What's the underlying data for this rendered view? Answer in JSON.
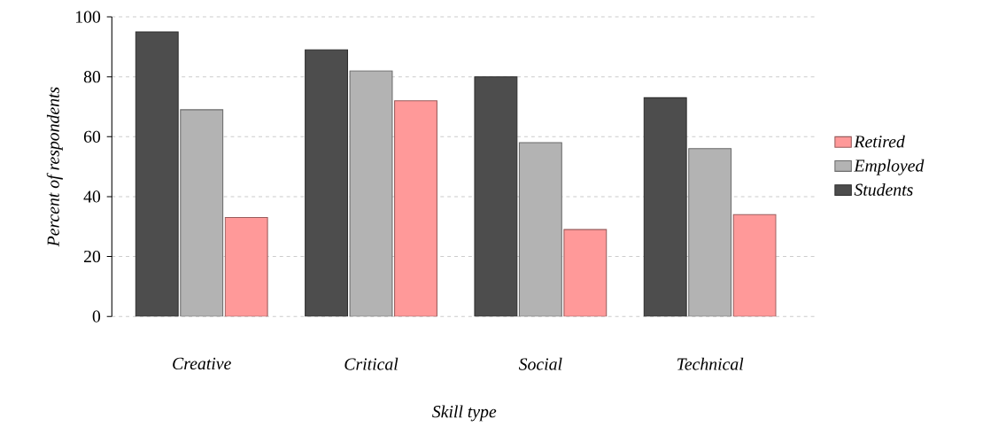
{
  "chart_data": {
    "type": "bar",
    "xlabel": "Skill type",
    "ylabel": "Percent of respondents",
    "categories": [
      "Creative",
      "Critical",
      "Social",
      "Technical"
    ],
    "series": [
      {
        "name": "Students",
        "color": "#4d4d4d",
        "values": [
          95,
          89,
          80,
          73
        ]
      },
      {
        "name": "Employed",
        "color": "#b3b3b3",
        "values": [
          69,
          82,
          58,
          56
        ]
      },
      {
        "name": "Retired",
        "color": "#ff9999",
        "values": [
          33,
          72,
          29,
          34
        ]
      }
    ],
    "ylim": [
      0,
      100
    ],
    "yticks": [
      0,
      20,
      40,
      60,
      80,
      100
    ],
    "grid": "y",
    "legend": "right"
  }
}
